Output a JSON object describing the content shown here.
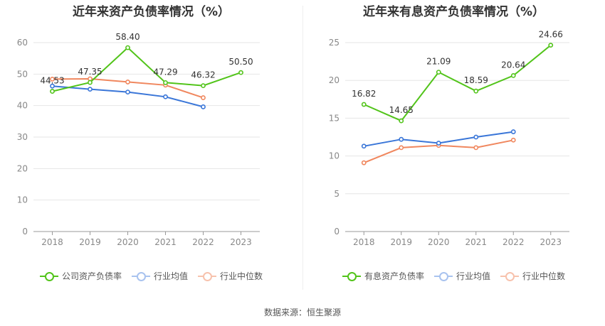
{
  "source_text": "数据来源：恒生聚源",
  "chart_data": [
    {
      "type": "line",
      "title": "近年来资产负债率情况（%）",
      "categories": [
        "2018",
        "2019",
        "2020",
        "2021",
        "2022",
        "2023"
      ],
      "ylim": [
        0,
        60
      ],
      "yticks": [
        0,
        10,
        20,
        30,
        40,
        50,
        60
      ],
      "grid": true,
      "legend_position": "bottom",
      "series": [
        {
          "name": "公司资产负债率",
          "color": "#52c41a",
          "values": [
            44.53,
            47.35,
            58.4,
            47.29,
            46.32,
            50.5
          ],
          "labels": [
            "44.53",
            "47.35",
            "58.40",
            "47.29",
            "46.32",
            "50.50"
          ]
        },
        {
          "name": "行业均值",
          "color": "#3a76d8",
          "values": [
            46.2,
            45.2,
            44.3,
            42.8,
            39.6,
            null
          ]
        },
        {
          "name": "行业中位数",
          "color": "#f0875e",
          "values": [
            48.4,
            48.5,
            47.5,
            46.5,
            42.5,
            null
          ]
        }
      ]
    },
    {
      "type": "line",
      "title": "近年来有息资产负债率情况（%）",
      "categories": [
        "2018",
        "2019",
        "2020",
        "2021",
        "2022",
        "2023"
      ],
      "ylim": [
        0,
        25
      ],
      "yticks": [
        0,
        5,
        10,
        15,
        20,
        25
      ],
      "grid": true,
      "legend_position": "bottom",
      "series": [
        {
          "name": "有息资产负债率",
          "color": "#52c41a",
          "values": [
            16.82,
            14.65,
            21.09,
            18.59,
            20.64,
            24.66
          ],
          "labels": [
            "16.82",
            "14.65",
            "21.09",
            "18.59",
            "20.64",
            "24.66"
          ]
        },
        {
          "name": "行业均值",
          "color": "#3a76d8",
          "values": [
            11.3,
            12.2,
            11.7,
            12.5,
            13.2,
            null
          ]
        },
        {
          "name": "行业中位数",
          "color": "#f0875e",
          "values": [
            9.1,
            11.1,
            11.4,
            11.1,
            12.1,
            null
          ]
        }
      ]
    }
  ]
}
